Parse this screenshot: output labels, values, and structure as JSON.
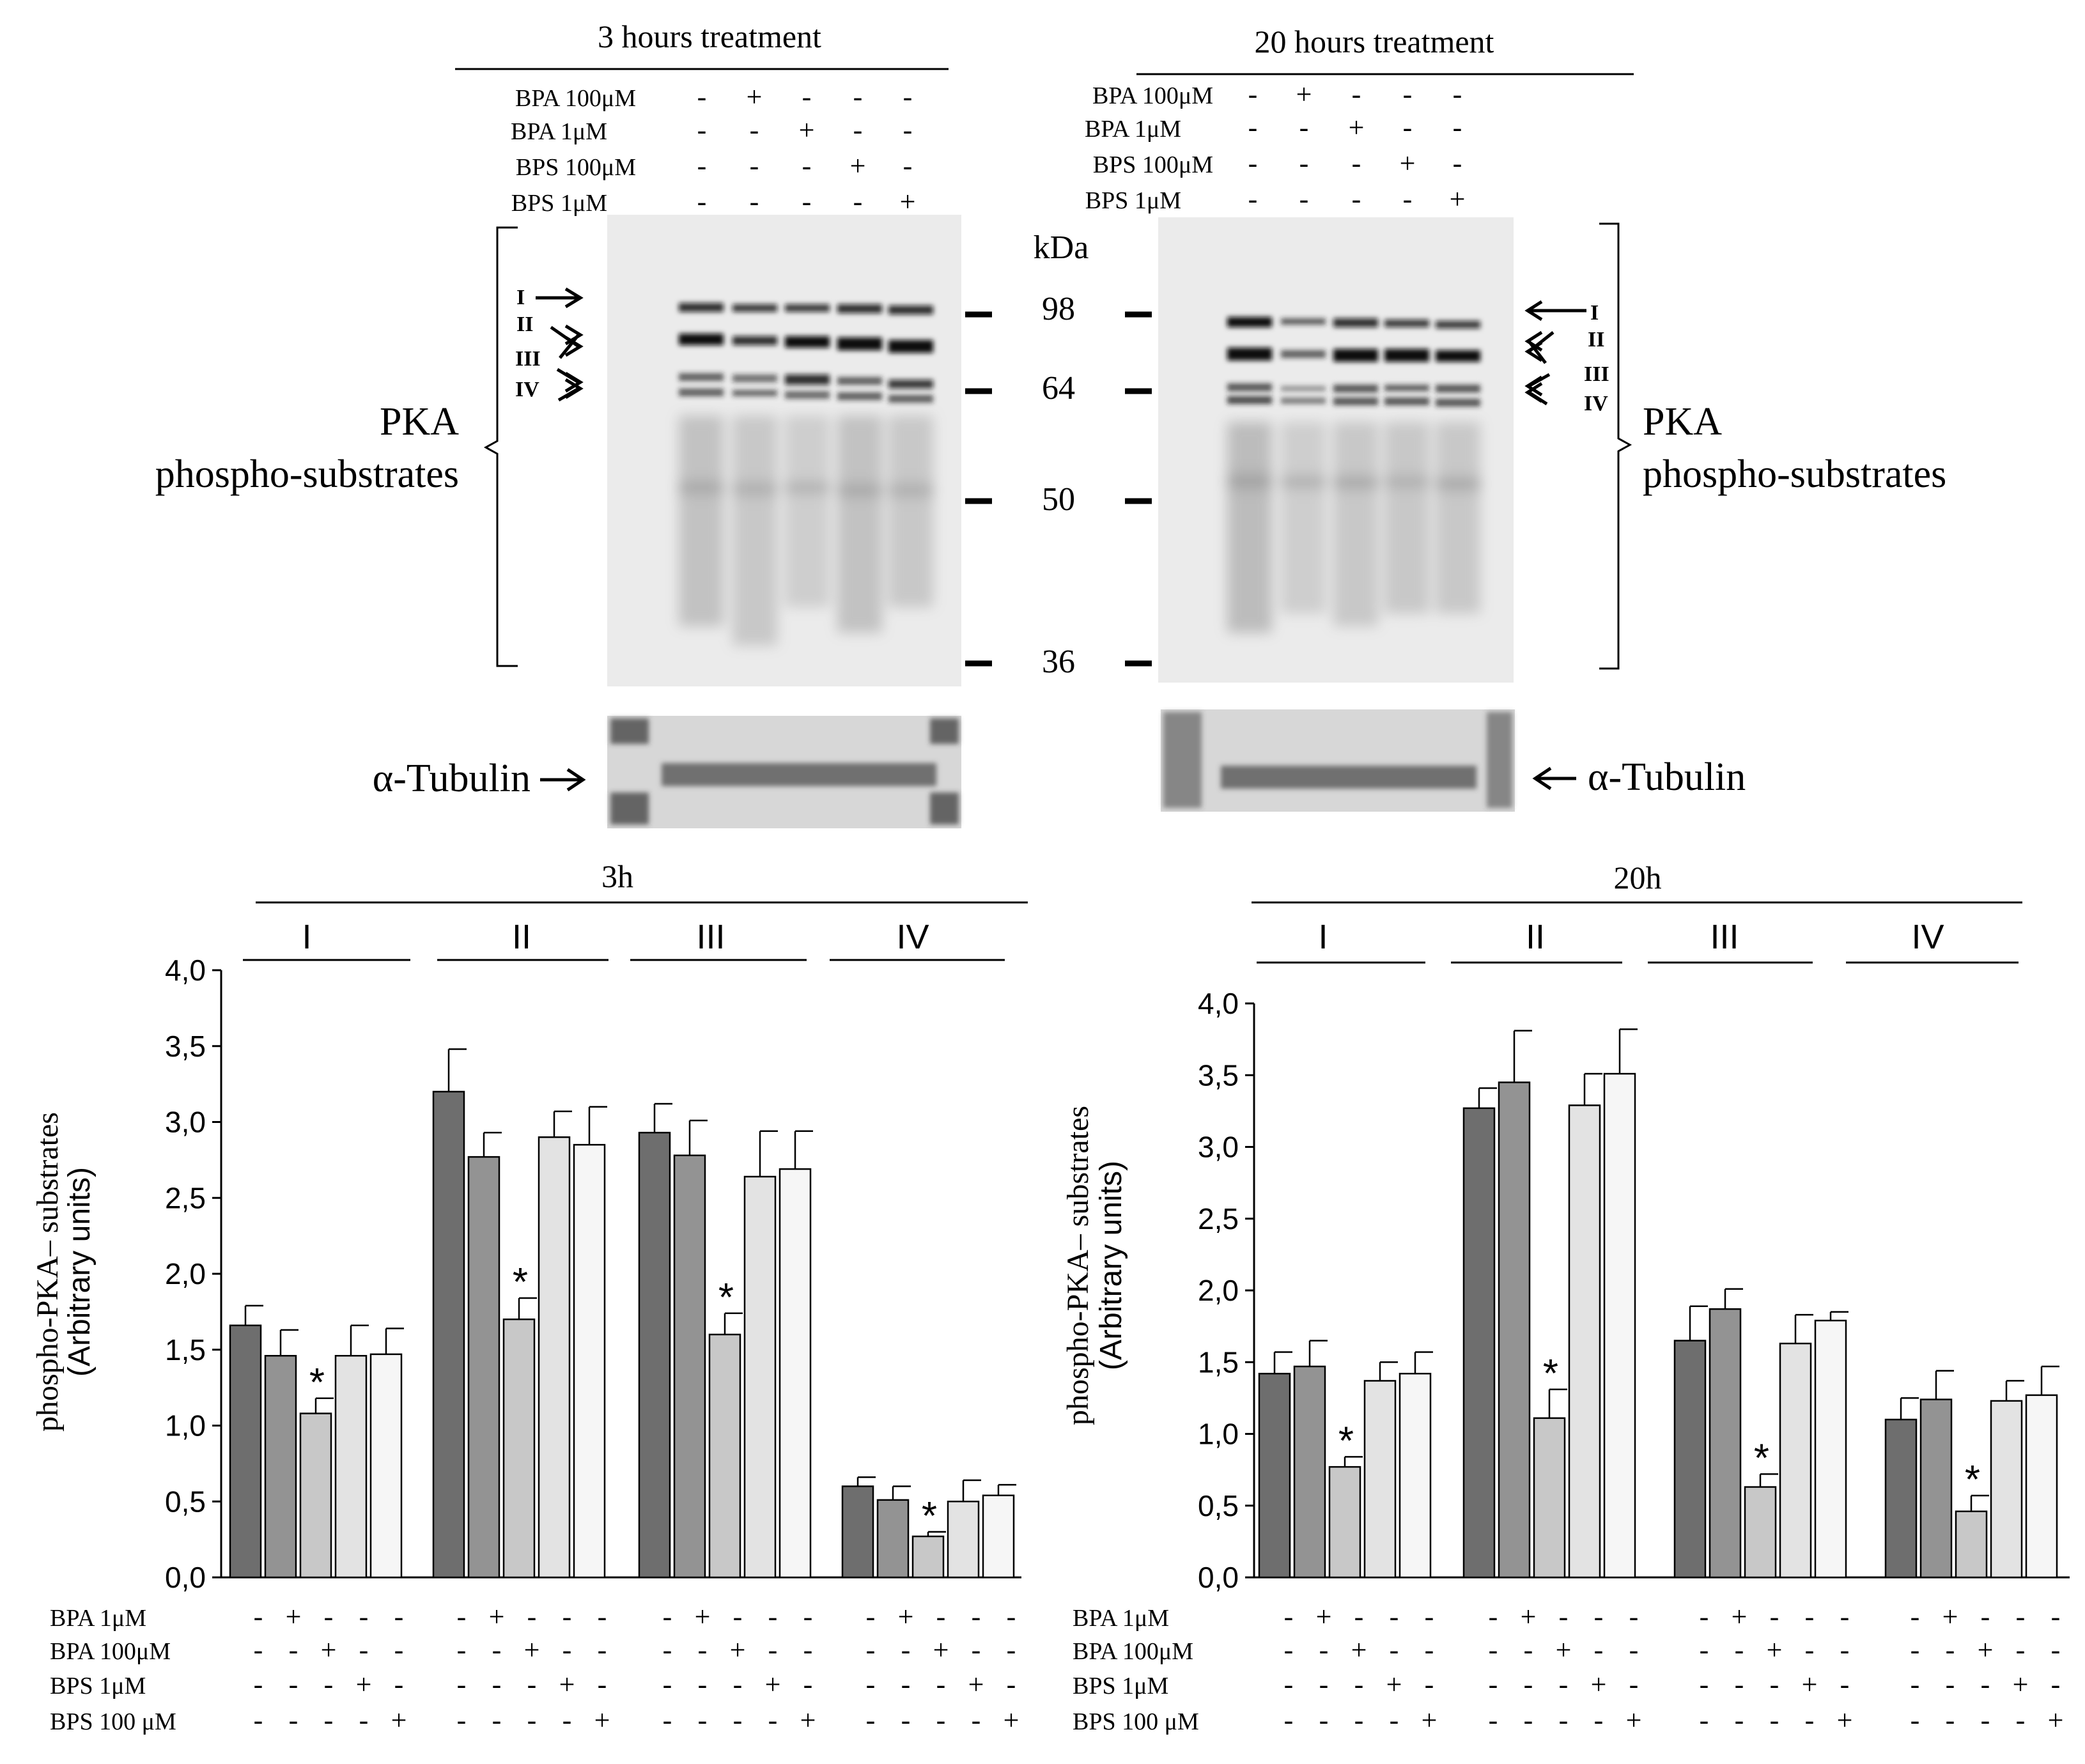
{
  "blots": {
    "left": {
      "title": "3 hours treatment",
      "conditions": [
        "BPA 100μM",
        "BPA 1μM",
        "BPS 100μM",
        "BPS 1μM"
      ],
      "lane_signs": [
        [
          "-",
          "+",
          "-",
          "-",
          "-"
        ],
        [
          "-",
          "-",
          "+",
          "-",
          "-"
        ],
        [
          "-",
          "-",
          "-",
          "+",
          "-"
        ],
        [
          "-",
          "-",
          "-",
          "-",
          "+"
        ]
      ],
      "bands": [
        "I",
        "II",
        "III",
        "IV"
      ],
      "side_label_line1": "PKA",
      "side_label_line2": "phospho-substrates",
      "tubulin_label": "α-Tubulin"
    },
    "right": {
      "title": "20 hours treatment",
      "conditions": [
        "BPA 100μM",
        "BPA 1μM",
        "BPS 100μM",
        "BPS 1μM"
      ],
      "lane_signs": [
        [
          "-",
          "+",
          "-",
          "-",
          "-"
        ],
        [
          "-",
          "-",
          "+",
          "-",
          "-"
        ],
        [
          "-",
          "-",
          "-",
          "+",
          "-"
        ],
        [
          "-",
          "-",
          "-",
          "-",
          "+"
        ]
      ],
      "bands": [
        "I",
        "II",
        "III",
        "IV"
      ],
      "side_label_line1": "PKA",
      "side_label_line2": "phospho-substrates",
      "tubulin_label": "α-Tubulin"
    },
    "kda_label": "kDa",
    "markers": [
      "98",
      "64",
      "50",
      "36"
    ]
  },
  "chart_data": [
    {
      "type": "bar",
      "title": "3h",
      "groups": [
        "I",
        "II",
        "III",
        "IV"
      ],
      "ylabel": "phospho-PKA– substrates",
      "ylabel2": "(Arbitrary units)",
      "ylim": [
        0,
        4
      ],
      "yticks": [
        "0,0",
        "0,5",
        "1,0",
        "1,5",
        "2,0",
        "2,5",
        "3,0",
        "3,5",
        "4,0"
      ],
      "bar_colors": [
        "#6e6e6e",
        "#939393",
        "#c8c8c8",
        "#e3e3e3",
        "#f6f6f6"
      ],
      "series": [
        {
          "values": [
            1.66,
            1.46,
            1.08,
            1.46,
            1.47
          ],
          "errors": [
            0.13,
            0.17,
            0.1,
            0.2,
            0.17
          ],
          "stars": [
            false,
            false,
            true,
            false,
            false
          ]
        },
        {
          "values": [
            3.2,
            2.77,
            1.7,
            2.9,
            2.85
          ],
          "errors": [
            0.28,
            0.16,
            0.14,
            0.17,
            0.25
          ],
          "stars": [
            false,
            false,
            true,
            false,
            false
          ]
        },
        {
          "values": [
            2.93,
            2.78,
            1.6,
            2.64,
            2.69
          ],
          "errors": [
            0.19,
            0.23,
            0.14,
            0.3,
            0.25
          ],
          "stars": [
            false,
            false,
            true,
            false,
            false
          ]
        },
        {
          "values": [
            0.6,
            0.51,
            0.27,
            0.5,
            0.54
          ],
          "errors": [
            0.06,
            0.09,
            0.03,
            0.14,
            0.07
          ],
          "stars": [
            false,
            false,
            true,
            false,
            false
          ]
        }
      ],
      "conditions": [
        "BPA 1μM",
        "BPA 100μM",
        "BPS 1μM",
        "BPS 100 μM"
      ],
      "condition_signs": [
        [
          "-",
          "+",
          "-",
          "-",
          "-"
        ],
        [
          "-",
          "-",
          "+",
          "-",
          "-"
        ],
        [
          "-",
          "-",
          "-",
          "+",
          "-"
        ],
        [
          "-",
          "-",
          "-",
          "-",
          "+"
        ]
      ],
      "star_symbol": "*"
    },
    {
      "type": "bar",
      "title": "20h",
      "groups": [
        "I",
        "II",
        "III",
        "IV"
      ],
      "ylabel": "phospho-PKA– substrates",
      "ylabel2": "(Arbitrary units)",
      "ylim": [
        0,
        4
      ],
      "yticks": [
        "0,0",
        "0,5",
        "1,0",
        "1,5",
        "2,0",
        "2,5",
        "3,0",
        "3,5",
        "4,0"
      ],
      "bar_colors": [
        "#6e6e6e",
        "#939393",
        "#c8c8c8",
        "#e3e3e3",
        "#f6f6f6"
      ],
      "series": [
        {
          "values": [
            1.42,
            1.47,
            0.77,
            1.37,
            1.42
          ],
          "errors": [
            0.15,
            0.18,
            0.07,
            0.13,
            0.15
          ],
          "stars": [
            false,
            false,
            true,
            false,
            false
          ]
        },
        {
          "values": [
            3.27,
            3.45,
            1.11,
            3.29,
            3.51
          ],
          "errors": [
            0.14,
            0.36,
            0.2,
            0.22,
            0.31
          ],
          "stars": [
            false,
            false,
            true,
            false,
            false
          ]
        },
        {
          "values": [
            1.65,
            1.87,
            0.63,
            1.63,
            1.79
          ],
          "errors": [
            0.24,
            0.14,
            0.09,
            0.2,
            0.06
          ],
          "stars": [
            false,
            false,
            true,
            false,
            false
          ]
        },
        {
          "values": [
            1.1,
            1.24,
            0.46,
            1.23,
            1.27
          ],
          "errors": [
            0.15,
            0.2,
            0.11,
            0.14,
            0.2
          ],
          "stars": [
            false,
            false,
            true,
            false,
            false
          ]
        }
      ],
      "conditions": [
        "BPA 1μM",
        "BPA 100μM",
        "BPS 1μM",
        "BPS 100 μM"
      ],
      "condition_signs": [
        [
          "-",
          "+",
          "-",
          "-",
          "-"
        ],
        [
          "-",
          "-",
          "+",
          "-",
          "-"
        ],
        [
          "-",
          "-",
          "-",
          "+",
          "-"
        ],
        [
          "-",
          "-",
          "-",
          "-",
          "+"
        ]
      ],
      "star_symbol": "*"
    }
  ]
}
